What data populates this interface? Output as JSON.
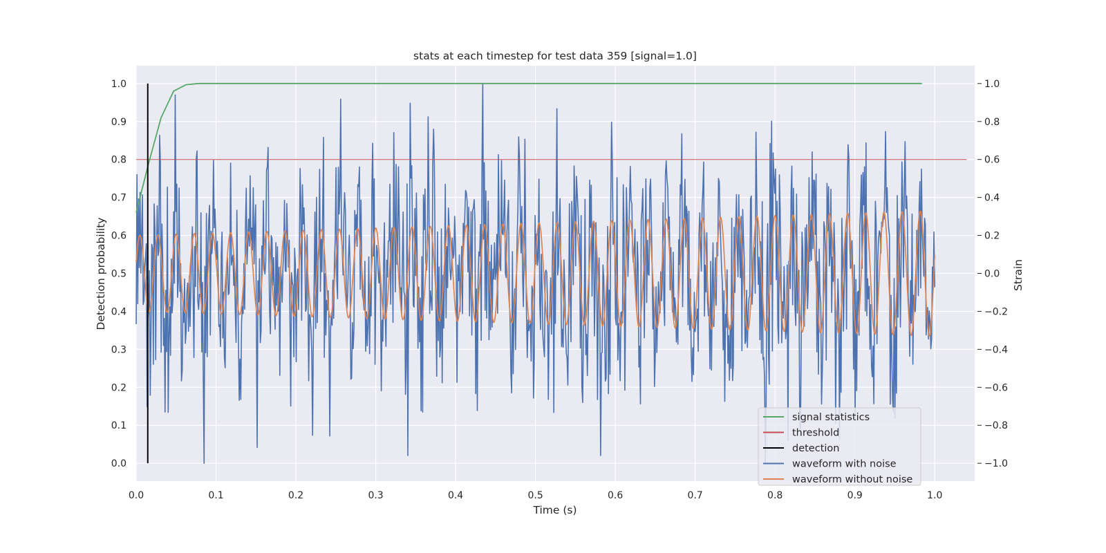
{
  "chart_data": {
    "type": "line",
    "title": "stats at each timestep for test data 359 [signal=1.0]",
    "xlabel": "Time (s)",
    "ylabel": "Detection probability",
    "ylabel_right": "Strain",
    "xlim": [
      0.0,
      1.05
    ],
    "ylim": [
      -0.047,
      1.047
    ],
    "ylim_right": [
      -1.094,
      1.094
    ],
    "x_ticks": [
      "0.0",
      "0.1",
      "0.2",
      "0.3",
      "0.4",
      "0.5",
      "0.6",
      "0.7",
      "0.8",
      "0.9",
      "1.0"
    ],
    "y_ticks": [
      "0.0",
      "0.1",
      "0.2",
      "0.3",
      "0.4",
      "0.5",
      "0.6",
      "0.7",
      "0.8",
      "0.9",
      "1.0"
    ],
    "y_ticks_right": [
      "−1.0",
      "−0.8",
      "−0.6",
      "−0.4",
      "−0.2",
      "0.0",
      "0.2",
      "0.4",
      "0.6",
      "0.8",
      "1.0"
    ],
    "grid": true,
    "legend_position": "lower-right",
    "series": [
      {
        "name": "signal statistics",
        "color": "#55a868",
        "axis": "left",
        "x": [
          0.0,
          0.0156,
          0.0312,
          0.0469,
          0.0625,
          0.0781,
          0.1,
          0.2,
          0.3,
          0.4,
          0.5,
          0.6,
          0.7,
          0.8,
          0.9,
          0.984
        ],
        "y": [
          0.66,
          0.79,
          0.91,
          0.98,
          0.997,
          1.0,
          1.0,
          1.0,
          1.0,
          1.0,
          1.0,
          1.0,
          1.0,
          1.0,
          1.0,
          1.0
        ]
      },
      {
        "name": "threshold",
        "color": "#c44e52",
        "axis": "left",
        "x": [
          0.0,
          1.04
        ],
        "y": [
          0.8,
          0.8
        ]
      },
      {
        "name": "detection",
        "color": "#000000",
        "axis": "left",
        "x": [
          0.0145,
          0.0145
        ],
        "y": [
          0.0,
          1.0
        ]
      },
      {
        "name": "waveform with noise",
        "color": "#4c72b0",
        "axis": "right",
        "x_range": [
          0.0,
          1.0
        ],
        "note_points": 1024,
        "y_extent": [
          -1.0,
          1.0
        ]
      },
      {
        "name": "waveform without noise",
        "color": "#dd8452",
        "axis": "right",
        "x_range": [
          0.0,
          1.0
        ],
        "amplitude_start": 0.2,
        "amplitude_end": 0.33,
        "cycles": 44
      }
    ]
  }
}
